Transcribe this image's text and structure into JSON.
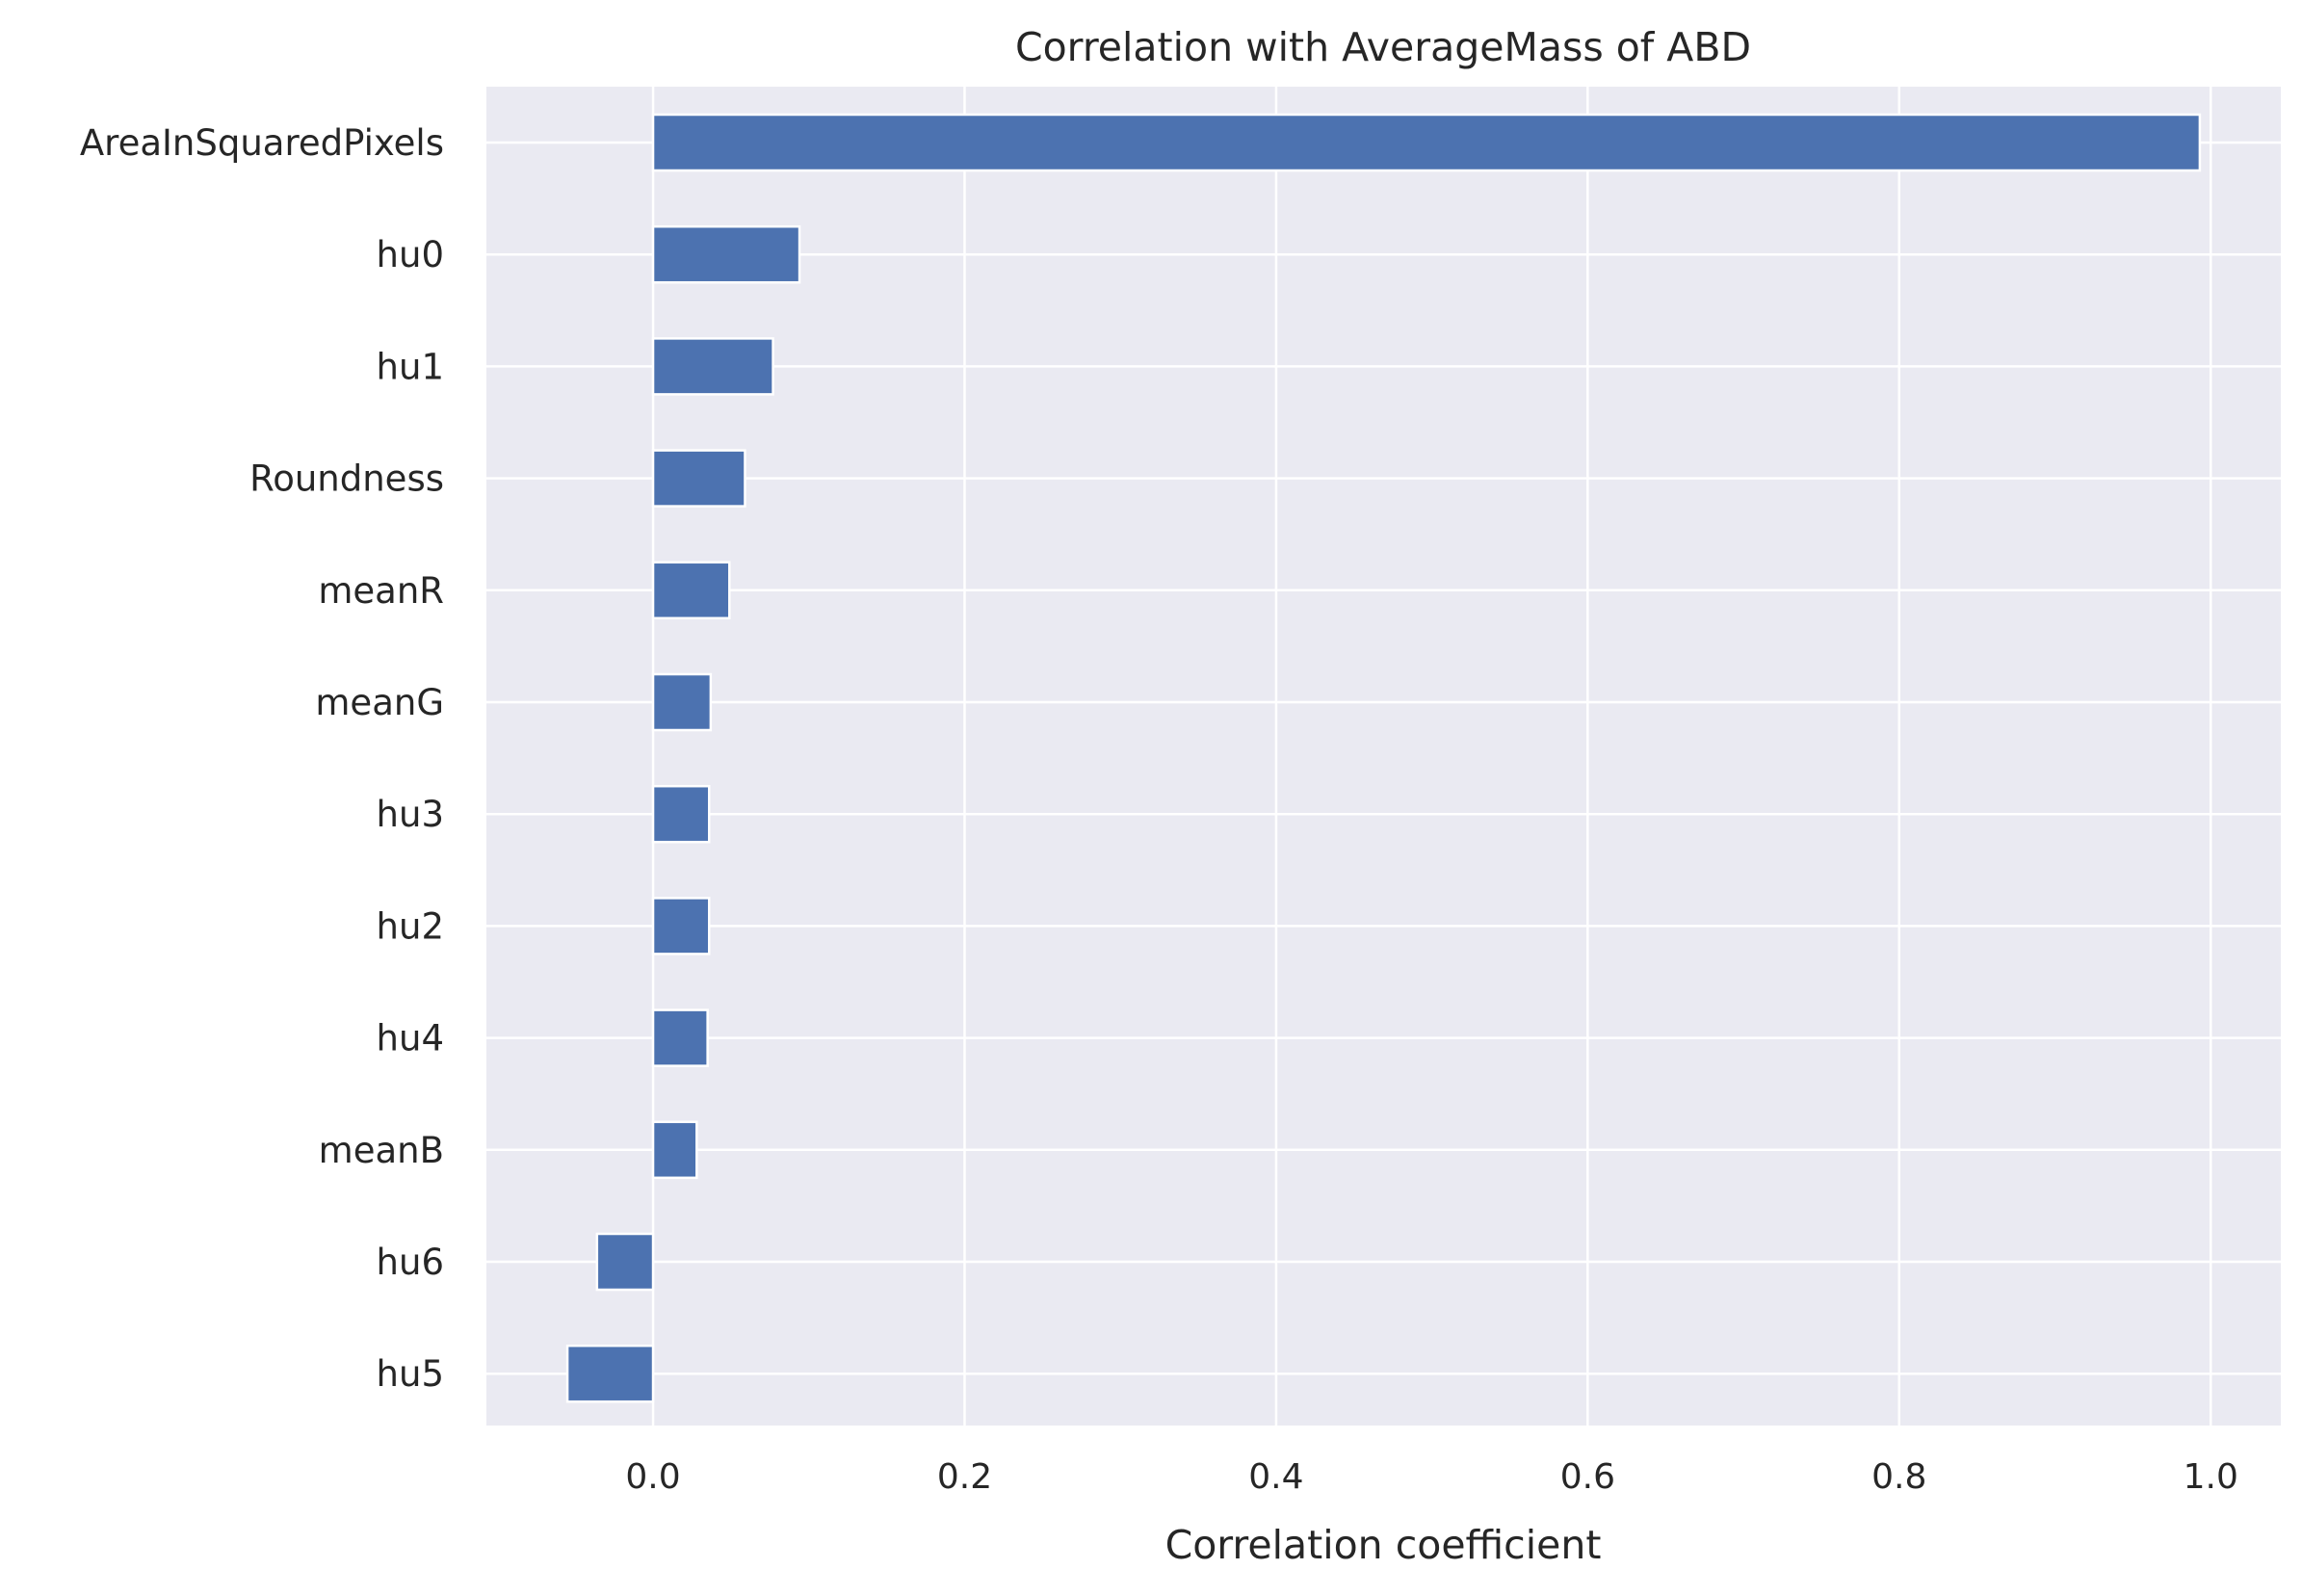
{
  "chart_data": {
    "type": "bar",
    "orientation": "horizontal",
    "title": "Correlation with AverageMass of ABD",
    "xlabel": "Correlation coefficient",
    "ylabel": "",
    "xlim": [
      -0.107,
      1.045
    ],
    "xticks": [
      0.0,
      0.2,
      0.4,
      0.6,
      0.8,
      1.0
    ],
    "xtick_labels": [
      "0.0",
      "0.2",
      "0.4",
      "0.6",
      "0.8",
      "1.0"
    ],
    "grid": true,
    "categories": [
      "AreaInSquaredPixels",
      "hu0",
      "hu1",
      "Roundness",
      "meanR",
      "meanG",
      "hu3",
      "hu2",
      "hu4",
      "meanB",
      "hu6",
      "hu5"
    ],
    "values": [
      0.993,
      0.094,
      0.077,
      0.059,
      0.049,
      0.037,
      0.036,
      0.036,
      0.035,
      0.028,
      -0.036,
      -0.055
    ],
    "colors": {
      "bar": "#4c72b0",
      "background": "#eaeaf2",
      "grid": "#ffffff",
      "text": "#262626"
    }
  }
}
